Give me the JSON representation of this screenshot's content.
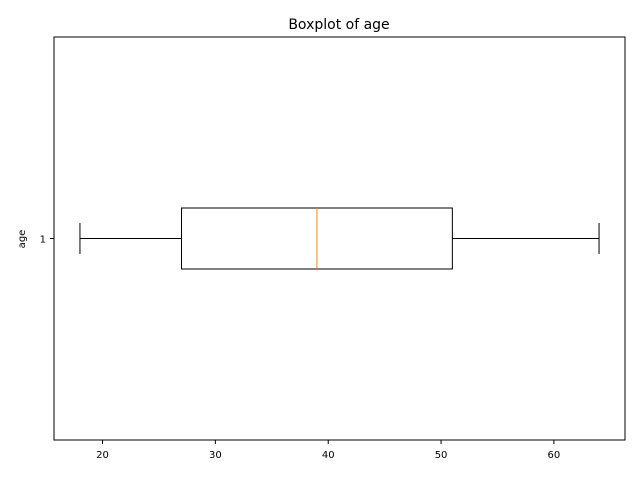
{
  "chart_data": {
    "type": "boxplot",
    "title": "Boxplot of age",
    "xlabel": "",
    "ylabel": "age",
    "orientation": "horizontal",
    "xlim": [
      15.7,
      66.3
    ],
    "xticks": [
      20,
      30,
      40,
      50,
      60
    ],
    "categories": [
      "1"
    ],
    "boxes": [
      {
        "whisker_low": 18,
        "q1": 27,
        "median": 39,
        "q3": 51,
        "whisker_high": 64
      }
    ],
    "grid": false,
    "colors": {
      "box": "#000000",
      "median": "#ff7f0e"
    }
  }
}
